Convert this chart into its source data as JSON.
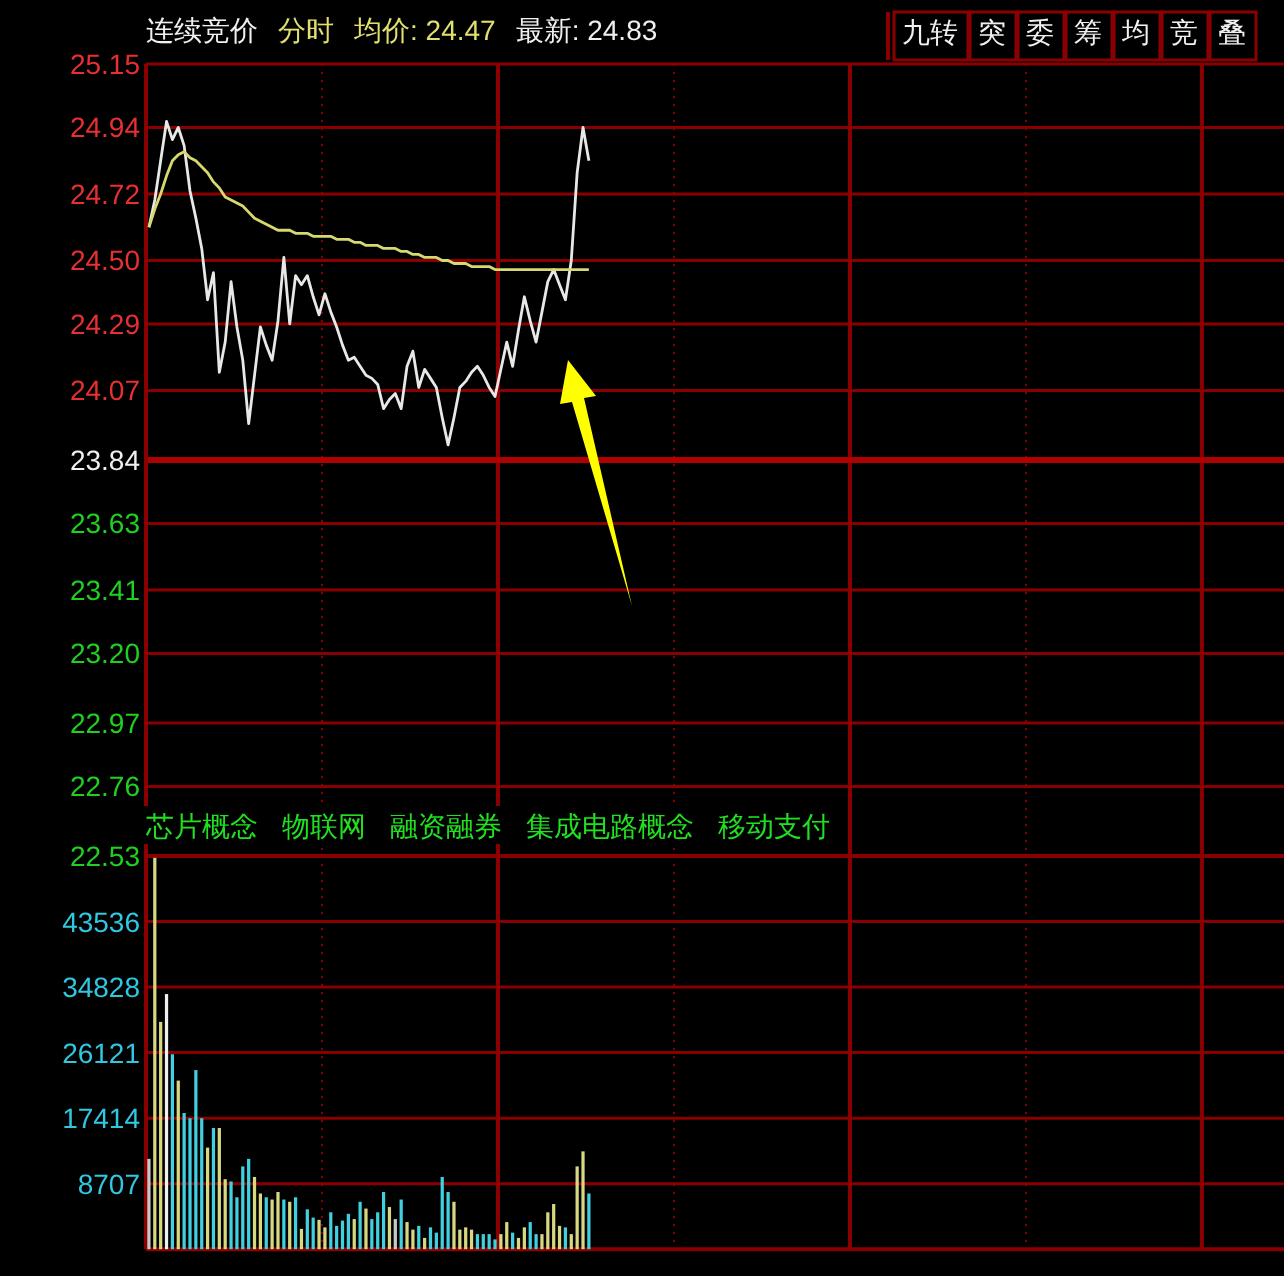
{
  "chart_data": [
    {
      "type": "line",
      "title": "连续竞价",
      "subtitle": "分时",
      "annotations": [
        "均价: 24.47",
        "最新: 24.83",
        "九转",
        "突",
        "委",
        "筹",
        "均",
        "竞",
        "叠"
      ],
      "categories": [
        null,
        null,
        null,
        null,
        null,
        null,
        null,
        null,
        null,
        null,
        null,
        null,
        null,
        null,
        null,
        null,
        null,
        null,
        null,
        null,
        null,
        null,
        null,
        null,
        null,
        null,
        null,
        null,
        null,
        null,
        null,
        null,
        null,
        null,
        null,
        null,
        null,
        null,
        null,
        null,
        null,
        null,
        null,
        null,
        null,
        null,
        null,
        null,
        null,
        null,
        null,
        null,
        null,
        null,
        null,
        null,
        null,
        null,
        null,
        null,
        null,
        null,
        null,
        null,
        null,
        null,
        null,
        null,
        null,
        null,
        null,
        null,
        null,
        null,
        null,
        null,
        null,
        null,
        null,
        null,
        null,
        null,
        null,
        null,
        null,
        null,
        null,
        null,
        null,
        null,
        null,
        null,
        null,
        null,
        null,
        null,
        null,
        null,
        null,
        null,
        null,
        null,
        null,
        null,
        null,
        null,
        null,
        null,
        null,
        null,
        null,
        null,
        null,
        null,
        null,
        null,
        null,
        null,
        null,
        null,
        null,
        null,
        null,
        null,
        null,
        null,
        null,
        null,
        null,
        null,
        null,
        null,
        null,
        null,
        null,
        null,
        null,
        null,
        null,
        null,
        null,
        null,
        null,
        null,
        null,
        null,
        null,
        null,
        null,
        null,
        null,
        null,
        null,
        null,
        null,
        null,
        null,
        null,
        null,
        null,
        null,
        null,
        null,
        null,
        null,
        null,
        null,
        null,
        null,
        null,
        null,
        null,
        null,
        null,
        null,
        null,
        null,
        null,
        null,
        null,
        null,
        null,
        null,
        null,
        null,
        null,
        null,
        null,
        null,
        null,
        null,
        null,
        null,
        null
      ],
      "series": [
        {
          "color": "#e8e8e8",
          "values": [
            24.61,
            24.7,
            24.83,
            24.96,
            24.9,
            24.94,
            24.88,
            24.73,
            24.64,
            24.54,
            24.37,
            24.46,
            24.13,
            24.23,
            24.43,
            24.28,
            24.17,
            23.96,
            24.12,
            24.28,
            24.22,
            24.17,
            24.3,
            24.51,
            24.29,
            24.45,
            24.42,
            24.45,
            24.38,
            24.32,
            24.39,
            24.33,
            24.28,
            24.22,
            24.17,
            24.18,
            24.15,
            24.12,
            24.11,
            24.09,
            24.01,
            24.04,
            24.06,
            24.01,
            24.15,
            24.2,
            24.08,
            24.14,
            24.11,
            24.08,
            23.98,
            23.89,
            23.98,
            24.08,
            24.1,
            24.13,
            24.15,
            24.12,
            24.08,
            24.05,
            24.14,
            24.23,
            24.15,
            24.27,
            24.38,
            24.3,
            24.23,
            24.33,
            24.43,
            24.47,
            24.42,
            24.37,
            24.5,
            24.79,
            24.94,
            24.83,
            null,
            null,
            null,
            null,
            null,
            null,
            null,
            null,
            null,
            null,
            null,
            null,
            null,
            null,
            null,
            null,
            null,
            null,
            null,
            null,
            null,
            null,
            null,
            null,
            null,
            null,
            null,
            null,
            null,
            null,
            null,
            null,
            null,
            null,
            null,
            null,
            null,
            null,
            null,
            null,
            null,
            null,
            null,
            null,
            null,
            null,
            null,
            null,
            null,
            null,
            null,
            null,
            null,
            null,
            null,
            null,
            null,
            null,
            null,
            null,
            null,
            null,
            null,
            null,
            null,
            null,
            null,
            null,
            null,
            null,
            null,
            null,
            null,
            null,
            null,
            null,
            null,
            null,
            null,
            null,
            null,
            null,
            null,
            null,
            null,
            null,
            null,
            null,
            null,
            null,
            null,
            null,
            null,
            null,
            null,
            null,
            null,
            null,
            null,
            null,
            null,
            null,
            null,
            null,
            null,
            null,
            null,
            null,
            null,
            null,
            null,
            null,
            null,
            null,
            null,
            null,
            null,
            null
          ]
        },
        {
          "color": "#d8d870",
          "values": [
            24.61,
            24.67,
            24.72,
            24.78,
            24.83,
            24.85,
            24.86,
            24.84,
            24.83,
            24.81,
            24.79,
            24.76,
            24.74,
            24.71,
            24.7,
            24.69,
            24.68,
            24.66,
            24.64,
            24.63,
            24.62,
            24.61,
            24.6,
            24.6,
            24.6,
            24.59,
            24.59,
            24.59,
            24.58,
            24.58,
            24.58,
            24.58,
            24.57,
            24.57,
            24.57,
            24.56,
            24.56,
            24.55,
            24.55,
            24.55,
            24.54,
            24.54,
            24.54,
            24.53,
            24.53,
            24.52,
            24.52,
            24.51,
            24.51,
            24.51,
            24.5,
            24.5,
            24.49,
            24.49,
            24.49,
            24.48,
            24.48,
            24.48,
            24.48,
            24.47,
            24.47,
            24.47,
            24.47,
            24.47,
            24.47,
            24.47,
            24.47,
            24.47,
            24.47,
            24.47,
            24.47,
            24.47,
            24.47,
            24.47,
            24.47,
            24.47,
            null,
            null,
            null,
            null,
            null,
            null,
            null,
            null,
            null,
            null,
            null,
            null,
            null,
            null,
            null,
            null,
            null,
            null,
            null,
            null,
            null,
            null,
            null,
            null,
            null,
            null,
            null,
            null,
            null,
            null,
            null,
            null,
            null,
            null,
            null,
            null,
            null,
            null,
            null,
            null,
            null,
            null,
            null,
            null,
            null,
            null,
            null,
            null,
            null,
            null,
            null,
            null,
            null,
            null,
            null,
            null,
            null,
            null,
            null,
            null,
            null,
            null,
            null,
            null,
            null,
            null,
            null,
            null,
            null,
            null,
            null,
            null,
            null,
            null,
            null,
            null,
            null,
            null,
            null,
            null,
            null,
            null,
            null,
            null,
            null,
            null,
            null,
            null,
            null,
            null,
            null,
            null,
            null,
            null,
            null,
            null,
            null,
            null,
            null,
            null,
            null,
            null,
            null,
            null,
            null,
            null,
            null,
            null,
            null,
            null,
            null,
            null,
            null,
            null,
            null,
            null,
            null,
            null
          ]
        }
      ],
      "ylim": [
        22.53,
        25.15
      ],
      "yticks": [
        25.15,
        24.94,
        24.72,
        {
          "value": 24.5,
          "label": "24.50"
        },
        24.29,
        24.07,
        23.84,
        23.63,
        23.41,
        {
          "value": 23.2,
          "label": "23.20"
        },
        22.97,
        22.76,
        22.53
      ],
      "grid": true,
      "tick_labels": "y",
      "ref_lines": [
        {
          "axis": "y",
          "value": 23.84,
          "color": "#b00000"
        }
      ]
    },
    {
      "type": "bar",
      "annotations": [
        "芯片概念",
        "物联网",
        "融资融券",
        "集成电路概念",
        "移动支付"
      ],
      "categories": [
        null,
        null,
        null,
        null,
        null,
        null,
        null,
        null,
        null,
        null,
        null,
        null,
        null,
        null,
        null,
        null,
        null,
        null,
        null,
        null,
        null,
        null,
        null,
        null,
        null,
        null,
        null,
        null,
        null,
        null,
        null,
        null,
        null,
        null,
        null,
        null,
        null,
        null,
        null,
        null,
        null,
        null,
        null,
        null,
        null,
        null,
        null,
        null,
        null,
        null,
        null,
        null,
        null,
        null,
        null,
        null,
        null,
        null,
        null,
        null,
        null,
        null,
        null,
        null,
        null,
        null,
        null,
        null,
        null,
        null,
        null,
        null,
        null,
        null,
        null,
        null,
        null,
        null,
        null,
        null,
        null,
        null,
        null,
        null,
        null,
        null,
        null,
        null,
        null,
        null,
        null,
        null,
        null,
        null,
        null,
        null,
        null,
        null,
        null,
        null,
        null,
        null,
        null,
        null,
        null,
        null,
        null,
        null,
        null,
        null,
        null,
        null,
        null,
        null,
        null,
        null,
        null,
        null,
        null,
        null,
        null,
        null,
        null,
        null,
        null,
        null,
        null,
        null,
        null,
        null,
        null,
        null,
        null,
        null,
        null,
        null,
        null,
        null,
        null,
        null,
        null,
        null,
        null,
        null,
        null,
        null,
        null,
        null,
        null,
        null,
        null,
        null,
        null,
        null,
        null,
        null,
        null,
        null,
        null,
        null,
        null,
        null,
        null,
        null,
        null,
        null,
        null,
        null,
        null,
        null,
        null,
        null,
        null,
        null,
        null,
        null,
        null,
        null,
        null,
        null,
        null,
        null,
        null,
        null,
        null,
        null,
        null,
        null,
        null,
        null,
        null,
        null,
        null,
        null
      ],
      "values": [
        12000,
        52000,
        30200,
        33900,
        25900,
        22400,
        18100,
        17400,
        23800,
        17400,
        13500,
        16100,
        16100,
        9300,
        9000,
        6900,
        11000,
        12000,
        9600,
        7400,
        6900,
        6600,
        7600,
        6600,
        6300,
        6900,
        2700,
        5300,
        4200,
        3900,
        2900,
        4900,
        3100,
        3800,
        4700,
        4000,
        6300,
        5400,
        4000,
        4900,
        7600,
        5600,
        4000,
        6600,
        3600,
        2600,
        3100,
        1500,
        2900,
        2200,
        9600,
        7600,
        6300,
        2600,
        2900,
        2600,
        2000,
        2000,
        2000,
        1300,
        2000,
        3600,
        2200,
        1500,
        2900,
        3600,
        2000,
        2000,
        4900,
        6000,
        3100,
        2900,
        2000,
        11000,
        13000,
        7400,
        null,
        null,
        null,
        null,
        null,
        null,
        null,
        null,
        null,
        null,
        null,
        null,
        null,
        null,
        null,
        null,
        null,
        null,
        null,
        null,
        null,
        null,
        null,
        null,
        null,
        null,
        null,
        null,
        null,
        null,
        null,
        null,
        null,
        null,
        null,
        null,
        null,
        null,
        null,
        null,
        null,
        null,
        null,
        null,
        null,
        null,
        null,
        null,
        null,
        null,
        null,
        null,
        null,
        null,
        null,
        null,
        null,
        null,
        null,
        null,
        null,
        null,
        null,
        null,
        null,
        null,
        null,
        null,
        null,
        null,
        null,
        null,
        null,
        null,
        null,
        null,
        null,
        null,
        null,
        null,
        null,
        null,
        null,
        null,
        null,
        null,
        null,
        null,
        null,
        null,
        null,
        null,
        null,
        null,
        null,
        null,
        null,
        null,
        null,
        null,
        null,
        null,
        null,
        null,
        null,
        null,
        null,
        null,
        null,
        null,
        null,
        null,
        null,
        null,
        null,
        null,
        null,
        null
      ],
      "colors": [
        "#c8c8c8",
        "#d8d880",
        "#d8d880",
        "#f0f0f0",
        "#40d0e0",
        "#d8d880",
        "#40d0e0",
        "#40d0e0",
        "#40d0e0",
        "#40d0e0",
        "#d8d880",
        "#40d0e0",
        "#d8d880",
        "#d8d880",
        "#40d0e0",
        "#40d0e0",
        "#40d0e0",
        "#40d0e0",
        "#d8d880",
        "#d8d880",
        "#40d0e0",
        "#d8d880",
        "#d8d880",
        "#40d0e0",
        "#d8d880",
        "#40d0e0",
        "#d8d880",
        "#40d0e0",
        "#40d0e0",
        "#d8d880",
        "#d8d880",
        "#40d0e0",
        "#40d0e0",
        "#40d0e0",
        "#40d0e0",
        "#d8d880",
        "#40d0e0",
        "#d8d880",
        "#40d0e0",
        "#40d0e0",
        "#40d0e0",
        "#d8d880",
        "#c8c8c8",
        "#40d0e0",
        "#d8d880",
        "#d8d880",
        "#40d0e0",
        "#d8d880",
        "#40d0e0",
        "#40d0e0",
        "#40d0e0",
        "#40d0e0",
        "#d8d880",
        "#d8d880",
        "#d8d880",
        "#d8d880",
        "#40d0e0",
        "#40d0e0",
        "#40d0e0",
        "#40d0e0",
        "#d8d880",
        "#d8d880",
        "#40d0e0",
        "#d8d880",
        "#d8d880",
        "#40d0e0",
        "#40d0e0",
        "#d8d880",
        "#d8d880",
        "#d8d880",
        "#d8d880",
        "#40d0e0",
        "#d8d880",
        "#d8d880",
        "#d8d880",
        "#40d0e0",
        null,
        null,
        null,
        null,
        null,
        null,
        null,
        null,
        null,
        null,
        null,
        null,
        null,
        null,
        null,
        null,
        null,
        null,
        null,
        null,
        null,
        null,
        null,
        null,
        null,
        null,
        null,
        null,
        null,
        null,
        null,
        null,
        null,
        null,
        null,
        null,
        null,
        null,
        null,
        null,
        null,
        null,
        null,
        null,
        null,
        null,
        null,
        null,
        null,
        null,
        null,
        null,
        null,
        null,
        null,
        null,
        null,
        null,
        null,
        null,
        null,
        null,
        null,
        null,
        null,
        null,
        null,
        null,
        null,
        null,
        null,
        null,
        null,
        null,
        null,
        null,
        null,
        null,
        null,
        null,
        null,
        null,
        null,
        null,
        null,
        null,
        null,
        null,
        null,
        null,
        null,
        null,
        null,
        null,
        null,
        null,
        null,
        null,
        null,
        null,
        null,
        null,
        null,
        null,
        null,
        null,
        null,
        null,
        null,
        null,
        null,
        null,
        null,
        null,
        null,
        null,
        null,
        null
      ],
      "ylim": [
        0,
        52243
      ],
      "yticks": [
        8707,
        17414,
        26121,
        34828,
        43536
      ],
      "grid": true,
      "tick_labels": "y"
    }
  ]
}
